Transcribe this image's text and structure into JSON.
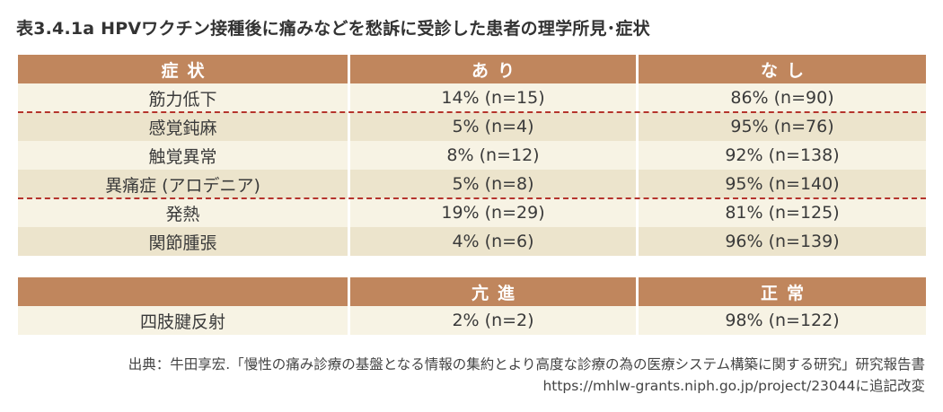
{
  "title": "表3.4.1a  HPVワクチン接種後に痛みなどを愁訴に受診した患者の理学所見･症状",
  "table1": {
    "headers": [
      "症状",
      "あり",
      "なし"
    ],
    "rows": [
      [
        "筋力低下",
        "14% (n=15)",
        "86% (n=90)"
      ],
      [
        "感覚鈍麻",
        "5% (n=4)",
        "95% (n=76)"
      ],
      [
        "触覚異常",
        "8% (n=12)",
        "92% (n=138)"
      ],
      [
        "異痛症 (アロデニア)",
        "5% (n=8)",
        "95% (n=140)"
      ],
      [
        "発熱",
        "19% (n=29)",
        "81% (n=125)"
      ],
      [
        "関節腫張",
        "4% (n=6)",
        "96% (n=139)"
      ]
    ]
  },
  "table2": {
    "headers": [
      "",
      "亢進",
      "正常"
    ],
    "rows": [
      [
        "四肢腱反射",
        "2% (n=2)",
        "98% (n=122)"
      ]
    ]
  },
  "source": {
    "line1": "出典：牛田享宏.「慢性の痛み診療の基盤となる情報の集約とより高度な診療の為の医療システム構築に関する研究」研究報告書",
    "line2": "https://mhlw-grants.niph.go.jp/project/23044に追記改変"
  },
  "colors": {
    "header": "#c0865d",
    "row_light": "#f7f3e4",
    "row_dark": "#ece4cc",
    "dashed_separator": "#b5342c"
  }
}
